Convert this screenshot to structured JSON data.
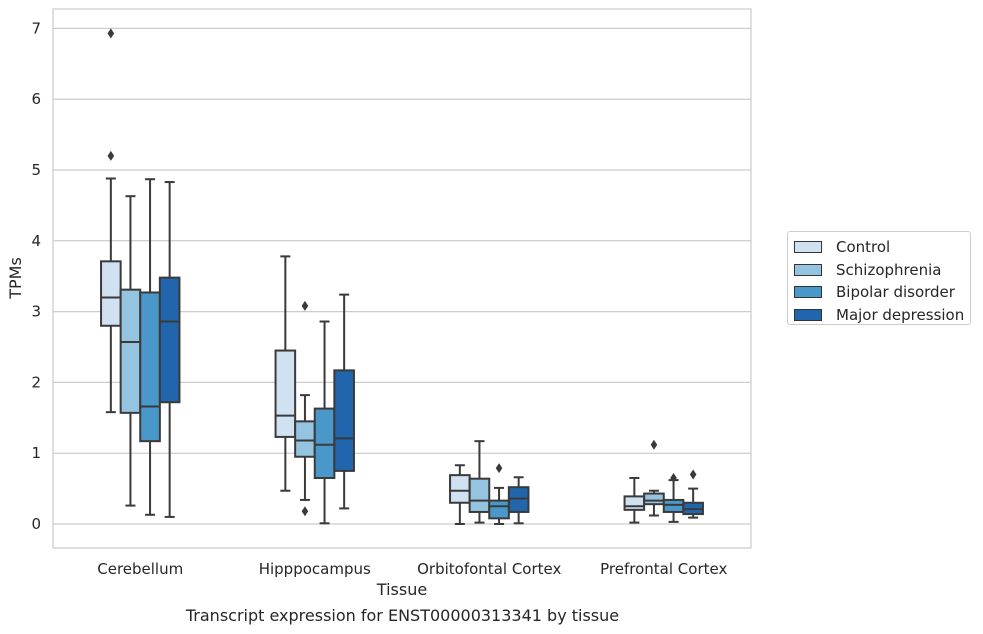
{
  "chart_data": {
    "type": "box",
    "title": "Transcript expression for ENST00000313341 by tissue",
    "xlabel": "Tissue",
    "ylabel": "TPMs",
    "ylim": [
      -0.33,
      7.3
    ],
    "yticks": [
      0,
      1,
      2,
      3,
      4,
      5,
      6,
      7
    ],
    "categories": [
      "Cerebellum",
      "Hipppocampus",
      "Orbitofontal Cortex",
      "Prefrontal Cortex"
    ],
    "grid": true,
    "legend_position": "right",
    "series": [
      {
        "name": "Control",
        "color": "#d0e1f2",
        "boxes": [
          {
            "whislo": 1.58,
            "q1": 2.8,
            "med": 3.2,
            "q3": 3.71,
            "whishi": 4.88,
            "fliers": [
              5.2,
              6.93
            ]
          },
          {
            "whislo": 0.47,
            "q1": 1.23,
            "med": 1.53,
            "q3": 2.45,
            "whishi": 3.78,
            "fliers": []
          },
          {
            "whislo": 0.0,
            "q1": 0.3,
            "med": 0.47,
            "q3": 0.69,
            "whishi": 0.83,
            "fliers": []
          },
          {
            "whislo": 0.02,
            "q1": 0.2,
            "med": 0.25,
            "q3": 0.39,
            "whishi": 0.65,
            "fliers": []
          }
        ]
      },
      {
        "name": "Schizophrenia",
        "color": "#94c4df",
        "boxes": [
          {
            "whislo": 0.26,
            "q1": 1.57,
            "med": 2.57,
            "q3": 3.31,
            "whishi": 4.63,
            "fliers": []
          },
          {
            "whislo": 0.34,
            "q1": 0.95,
            "med": 1.18,
            "q3": 1.45,
            "whishi": 1.82,
            "fliers": [
              0.18,
              3.08
            ]
          },
          {
            "whislo": 0.02,
            "q1": 0.17,
            "med": 0.33,
            "q3": 0.64,
            "whishi": 1.17,
            "fliers": []
          },
          {
            "whislo": 0.12,
            "q1": 0.28,
            "med": 0.33,
            "q3": 0.43,
            "whishi": 0.47,
            "fliers": [
              1.12
            ]
          }
        ]
      },
      {
        "name": "Bipolar disorder",
        "color": "#4a98c9",
        "boxes": [
          {
            "whislo": 0.13,
            "q1": 1.17,
            "med": 1.66,
            "q3": 3.27,
            "whishi": 4.87,
            "fliers": []
          },
          {
            "whislo": 0.01,
            "q1": 0.65,
            "med": 1.12,
            "q3": 1.63,
            "whishi": 2.86,
            "fliers": []
          },
          {
            "whislo": 0.0,
            "q1": 0.08,
            "med": 0.25,
            "q3": 0.33,
            "whishi": 0.51,
            "fliers": [
              0.79
            ]
          },
          {
            "whislo": 0.03,
            "q1": 0.17,
            "med": 0.27,
            "q3": 0.34,
            "whishi": 0.62,
            "fliers": [
              0.65
            ]
          }
        ]
      },
      {
        "name": "Major depression",
        "color": "#2166ac",
        "boxes": [
          {
            "whislo": 0.1,
            "q1": 1.72,
            "med": 2.86,
            "q3": 3.48,
            "whishi": 4.83,
            "fliers": []
          },
          {
            "whislo": 0.22,
            "q1": 0.75,
            "med": 1.21,
            "q3": 2.17,
            "whishi": 3.24,
            "fliers": []
          },
          {
            "whislo": 0.01,
            "q1": 0.17,
            "med": 0.36,
            "q3": 0.52,
            "whishi": 0.66,
            "fliers": []
          },
          {
            "whislo": 0.09,
            "q1": 0.14,
            "med": 0.21,
            "q3": 0.3,
            "whishi": 0.5,
            "fliers": [
              0.7
            ]
          }
        ]
      }
    ]
  }
}
